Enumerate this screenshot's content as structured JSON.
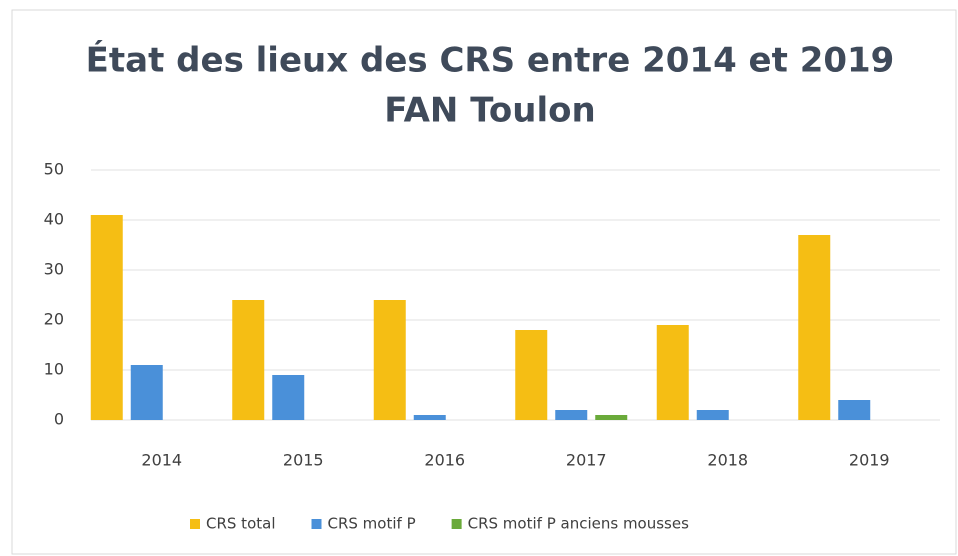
{
  "chart_data": {
    "type": "bar",
    "title": "État des lieux des CRS entre 2014 et 2019",
    "subtitle": "FAN Toulon",
    "categories": [
      "2014",
      "2015",
      "2016",
      "2017",
      "2018",
      "2019"
    ],
    "series": [
      {
        "name": "CRS total",
        "color": "#f5be14",
        "values": [
          41,
          24,
          24,
          18,
          19,
          37
        ]
      },
      {
        "name": "CRS motif P",
        "color": "#4a90d9",
        "values": [
          11,
          9,
          1,
          2,
          2,
          4
        ]
      },
      {
        "name": "CRS motif P anciens mousses",
        "color": "#6aaa3a",
        "values": [
          0,
          0,
          0,
          1,
          0,
          0
        ]
      }
    ],
    "ylim": [
      0,
      50
    ],
    "yticks": [
      0,
      10,
      20,
      30,
      40,
      50
    ],
    "grid": true,
    "legend": "bottom"
  }
}
